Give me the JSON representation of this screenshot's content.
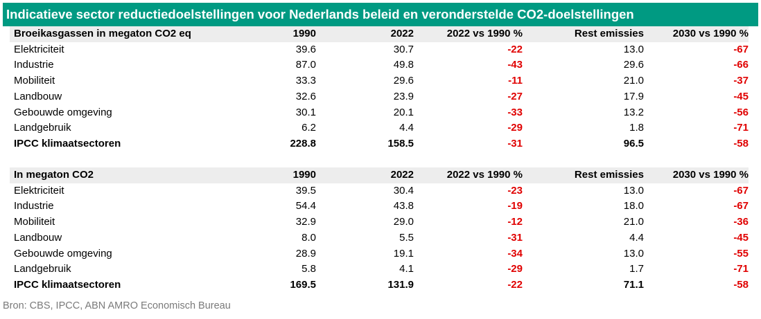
{
  "title": "Indicatieve sector reductiedoelstellingen voor Nederlands beleid en veronderstelde CO2-doelstellingen",
  "tables": [
    {
      "headers": [
        "Broeikasgassen in megaton CO2 eq",
        "1990",
        "2022",
        "2022 vs 1990 %",
        "Rest emissies",
        "2030 vs 1990 %"
      ],
      "rows": [
        [
          "Elektriciteit",
          "39.6",
          "30.7",
          "-22",
          "13.0",
          "-67"
        ],
        [
          "Industrie",
          "87.0",
          "49.8",
          "-43",
          "29.6",
          "-66"
        ],
        [
          "Mobiliteit",
          "33.3",
          "29.6",
          "-11",
          "21.0",
          "-37"
        ],
        [
          "Landbouw",
          "32.6",
          "23.9",
          "-27",
          "17.9",
          "-45"
        ],
        [
          "Gebouwde omgeving",
          "30.1",
          "20.1",
          "-33",
          "13.2",
          "-56"
        ],
        [
          "Landgebruik",
          "6.2",
          "4.4",
          "-29",
          "1.8",
          "-71"
        ]
      ],
      "total": [
        "IPCC klimaatsectoren",
        "228.8",
        "158.5",
        "-31",
        "96.5",
        "-58"
      ]
    },
    {
      "headers": [
        "In megaton CO2",
        "1990",
        "2022",
        "2022 vs 1990 %",
        "Rest emissies",
        "2030 vs 1990 %"
      ],
      "rows": [
        [
          "Elektriciteit",
          "39.5",
          "30.4",
          "-23",
          "13.0",
          "-67"
        ],
        [
          "Industrie",
          "54.4",
          "43.8",
          "-19",
          "18.0",
          "-67"
        ],
        [
          "Mobiliteit",
          "32.9",
          "29.0",
          "-12",
          "21.0",
          "-36"
        ],
        [
          "Landbouw",
          "8.0",
          "5.5",
          "-31",
          "4.4",
          "-45"
        ],
        [
          "Gebouwde omgeving",
          "28.9",
          "19.1",
          "-34",
          "13.0",
          "-55"
        ],
        [
          "Landgebruik",
          "5.8",
          "4.1",
          "-29",
          "1.7",
          "-71"
        ]
      ],
      "total": [
        "IPCC klimaatsectoren",
        "169.5",
        "131.9",
        "-22",
        "71.1",
        "-58"
      ]
    }
  ],
  "source": "Bron: CBS, IPCC, ABN AMRO Economisch Bureau",
  "colors": {
    "title_background": "#009a82",
    "header_background": "#ededed",
    "negative_value": "#e00000",
    "source_text": "#7a7a7a"
  }
}
